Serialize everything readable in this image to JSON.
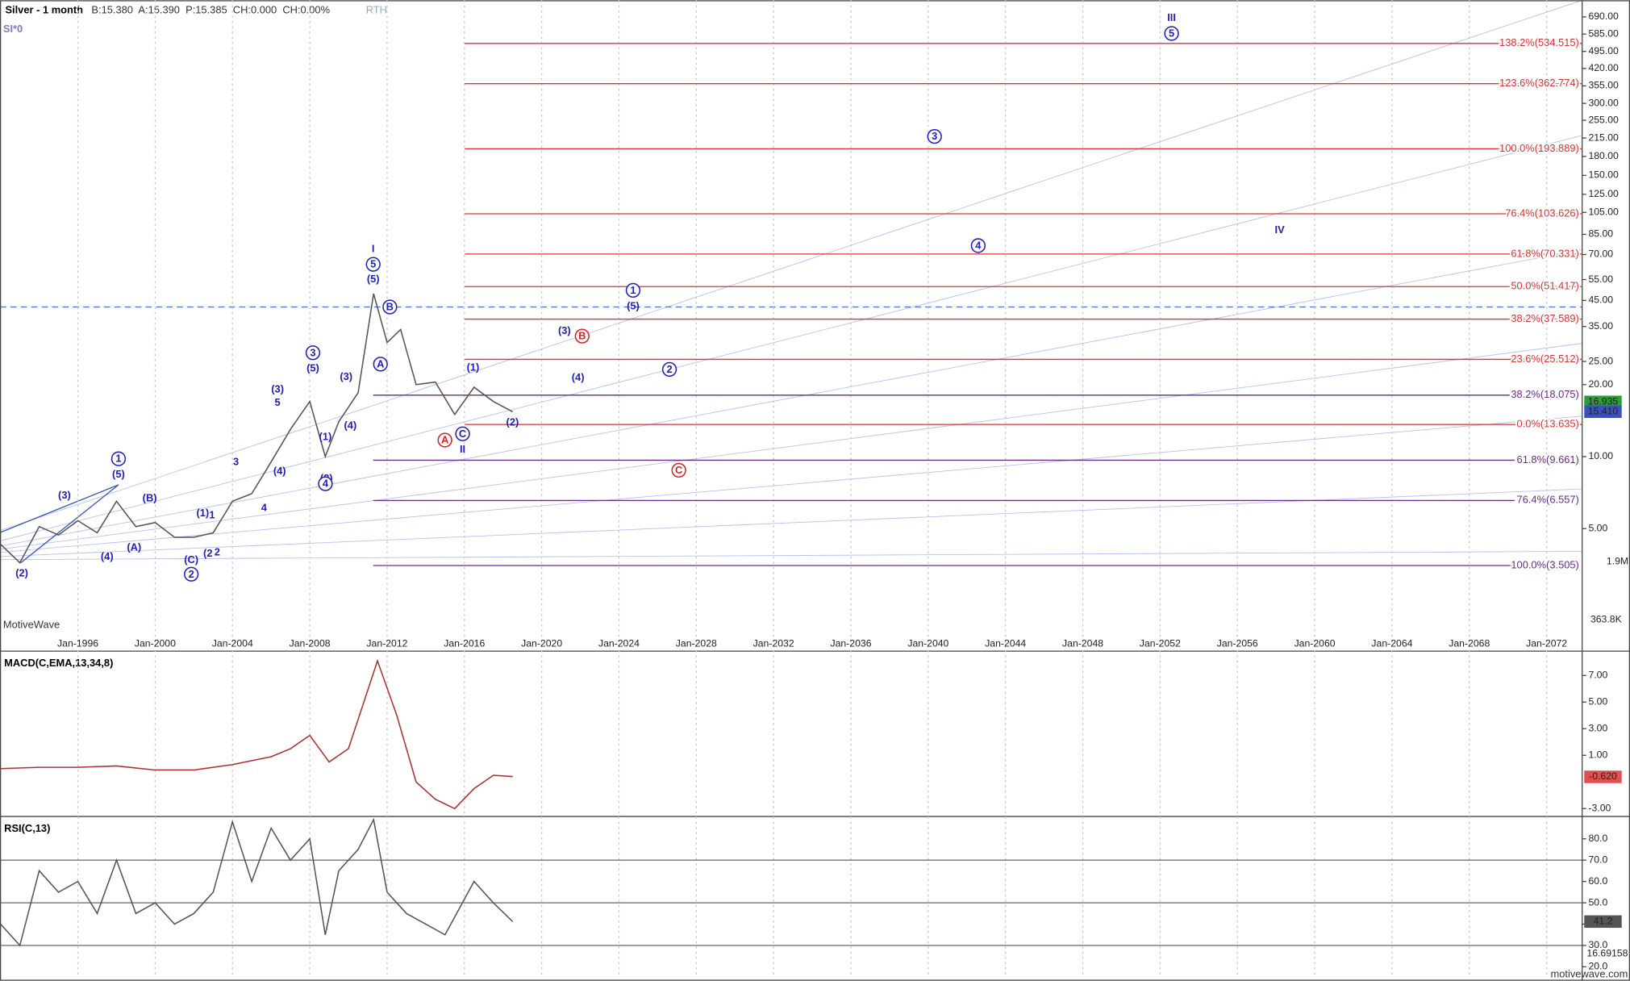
{
  "header": {
    "instrument": "Silver - 1 month",
    "quote": "B:15.380  A:15.390  P:15.385  CH:0.000  CH:0.00%",
    "session": "RTH",
    "symbol": "SI*0",
    "watermark": "MotiveWave",
    "footer": "motivewave.com",
    "volume_labels": [
      "1.9M",
      "363.8K"
    ]
  },
  "chart_data": [
    {
      "type": "line",
      "log_scale": true,
      "grid": true,
      "color": "#555555",
      "x": [
        1992.0,
        1993.0,
        1994.0,
        1995.0,
        1996.0,
        1997.0,
        1998.0,
        1999.0,
        2000.0,
        2001.0,
        2002.0,
        2003.0,
        2004.0,
        2005.0,
        2006.0,
        2007.0,
        2008.0,
        2008.8,
        2009.5,
        2010.5,
        2011.3,
        2012.0,
        2012.7,
        2013.5,
        2014.5,
        2015.5,
        2016.5,
        2017.5,
        2018.5
      ],
      "values": [
        4.3,
        3.6,
        5.1,
        4.7,
        5.4,
        4.8,
        6.5,
        5.1,
        5.3,
        4.6,
        4.6,
        4.8,
        6.5,
        7.0,
        9.5,
        13.0,
        17.0,
        10.0,
        14.0,
        18.5,
        48.0,
        30.0,
        34.0,
        20.0,
        20.5,
        15.0,
        19.5,
        17.0,
        15.4
      ],
      "xlim": [
        1991.97,
        2073.84
      ],
      "ylim": [
        1.84,
        794
      ],
      "xticks": [
        {
          "value": 1996,
          "label": "Jan-1996"
        },
        {
          "value": 2000,
          "label": "Jan-2000"
        },
        {
          "value": 2004,
          "label": "Jan-2004"
        },
        {
          "value": 2008,
          "label": "Jan-2008"
        },
        {
          "value": 2012,
          "label": "Jan-2012"
        },
        {
          "value": 2016,
          "label": "Jan-2016"
        },
        {
          "value": 2020,
          "label": "Jan-2020"
        },
        {
          "value": 2024,
          "label": "Jan-2024"
        },
        {
          "value": 2028,
          "label": "Jan-2028"
        },
        {
          "value": 2032,
          "label": "Jan-2032"
        },
        {
          "value": 2036,
          "label": "Jan-2036"
        },
        {
          "value": 2040,
          "label": "Jan-2040"
        },
        {
          "value": 2044,
          "label": "Jan-2044"
        },
        {
          "value": 2048,
          "label": "Jan-2048"
        },
        {
          "value": 2052,
          "label": "Jan-2052"
        },
        {
          "value": 2056,
          "label": "Jan-2056"
        },
        {
          "value": 2060,
          "label": "Jan-2060"
        },
        {
          "value": 2064,
          "label": "Jan-2064"
        },
        {
          "value": 2068,
          "label": "Jan-2068"
        },
        {
          "value": 2072,
          "label": "Jan-2072"
        }
      ],
      "yticks": [
        {
          "value": 690,
          "label": "690.00"
        },
        {
          "value": 585,
          "label": "585.00"
        },
        {
          "value": 495,
          "label": "495.00"
        },
        {
          "value": 420,
          "label": "420.00"
        },
        {
          "value": 355,
          "label": "355.00"
        },
        {
          "value": 300,
          "label": "300.00"
        },
        {
          "value": 255,
          "label": "255.00"
        },
        {
          "value": 215,
          "label": "215.00"
        },
        {
          "value": 180,
          "label": "180.00"
        },
        {
          "value": 150,
          "label": "150.00"
        },
        {
          "value": 125,
          "label": "125.00"
        },
        {
          "value": 105,
          "label": "105.00"
        },
        {
          "value": 85,
          "label": "85.00"
        },
        {
          "value": 70,
          "label": "70.00"
        },
        {
          "value": 55,
          "label": "55.00"
        },
        {
          "value": 45,
          "label": "45.00"
        },
        {
          "value": 35,
          "label": "35.00"
        },
        {
          "value": 25,
          "label": "25.00"
        },
        {
          "value": 20,
          "label": "20.00"
        },
        {
          "value": 10,
          "label": "10.00"
        },
        {
          "value": 5,
          "label": "5.00"
        }
      ],
      "markers": [
        {
          "value": 16.935,
          "label": "16.935",
          "color": "#2e9a3a"
        },
        {
          "value": 15.41,
          "label": "15.410",
          "color": "#3a50c0"
        }
      ],
      "levels": [
        {
          "value": 534.515,
          "label": "138.2%(534.515)",
          "color": "#e03030"
        },
        {
          "value": 362.774,
          "label": "123.6%(362.774)",
          "color": "#e03030"
        },
        {
          "value": 193.889,
          "label": "100.0%(193.889)",
          "color": "#e03030"
        },
        {
          "value": 103.626,
          "label": "76.4%(103.626)",
          "color": "#e03030"
        },
        {
          "value": 70.331,
          "label": "61.8%(70.331)",
          "color": "#e03030"
        },
        {
          "value": 51.417,
          "label": "50.0%(51.417)",
          "color": "#e03030"
        },
        {
          "value": 37.589,
          "label": "38.2%(37.589)",
          "color": "#e03030"
        },
        {
          "value": 25.512,
          "label": "23.6%(25.512)",
          "color": "#e03030"
        },
        {
          "value": 18.075,
          "label": "38.2%(18.075)",
          "color": "#6a2a8a"
        },
        {
          "value": 13.635,
          "label": "0.0%(13.635)",
          "color": "#e03030"
        },
        {
          "value": 9.661,
          "label": "61.8%(9.661)",
          "color": "#6a2a8a"
        },
        {
          "value": 6.557,
          "label": "76.4%(6.557)",
          "color": "#6a2a8a"
        },
        {
          "value": 3.505,
          "label": "100.0%(3.505)",
          "color": "#6a2a8a"
        }
      ],
      "wave_labels": [
        "III",
        "5",
        "3",
        "4",
        "IV",
        "I",
        "5",
        "(5)",
        "B",
        "1",
        "(5)",
        "(3)",
        "B",
        "A",
        "(1)",
        "2",
        "(4)",
        "3",
        "(5)",
        "(3)",
        "5",
        "(3)",
        "(4)",
        "(1)",
        "(2)",
        "C",
        "II",
        "A",
        "C",
        "3",
        "(4)",
        "(2)",
        "4",
        "4",
        "1",
        "(5)",
        "(3)",
        "(B)",
        "(1)",
        "1",
        "(A)",
        "(4)",
        "(2",
        "2",
        "(C)",
        "2",
        "(2)"
      ]
    },
    {
      "type": "line",
      "title": "MACD(C,EMA,13,34,8)",
      "color": "#b03030",
      "x": [
        1992,
        1994,
        1996,
        1998,
        2000,
        2002,
        2004,
        2006,
        2007,
        2008,
        2009,
        2010,
        2011.5,
        2012.5,
        2013.5,
        2014.5,
        2015.5,
        2016.5,
        2017.5,
        2018.5
      ],
      "values": [
        0,
        0.1,
        0.1,
        0.2,
        -0.1,
        -0.1,
        0.3,
        0.9,
        1.5,
        2.5,
        0.5,
        1.5,
        8.1,
        4,
        -1,
        -2.3,
        -3,
        -1.5,
        -0.5,
        -0.6
      ],
      "ylim": [
        -3.44,
        8.67
      ],
      "yticks": [
        {
          "value": 7,
          "label": "7.00"
        },
        {
          "value": 5,
          "label": "5.00"
        },
        {
          "value": 3,
          "label": "3.00"
        },
        {
          "value": 1,
          "label": "1.00"
        },
        {
          "value": -3,
          "label": "-3.00"
        }
      ],
      "markers": [
        {
          "value": -0.62,
          "label": "-0.620",
          "color": "#e05050"
        }
      ]
    },
    {
      "type": "line",
      "title": "RSI(C,13)",
      "color": "#555555",
      "x": [
        1992,
        1993,
        1994,
        1995,
        1996,
        1997,
        1998,
        1999,
        2000,
        2001,
        2002,
        2003,
        2004,
        2005,
        2006,
        2007,
        2008,
        2008.8,
        2009.5,
        2010.5,
        2011.3,
        2012,
        2013,
        2014,
        2015,
        2016.5,
        2017.5,
        2018.5
      ],
      "values": [
        40,
        30,
        65,
        55,
        60,
        45,
        70,
        45,
        50,
        40,
        45,
        55,
        88,
        60,
        85,
        70,
        80,
        35,
        65,
        75,
        89,
        55,
        45,
        40,
        35,
        60,
        50,
        41.2
      ],
      "ylim": [
        14.9,
        89.5
      ],
      "yticks": [
        {
          "value": 80,
          "label": "80.0"
        },
        {
          "value": 70,
          "label": "70.0"
        },
        {
          "value": 60,
          "label": "60.0"
        },
        {
          "value": 50,
          "label": "50.0"
        },
        {
          "value": 40,
          "label": "40.0"
        },
        {
          "value": 30,
          "label": "30.0"
        },
        {
          "value": 20,
          "label": "20.0"
        }
      ],
      "levels": [
        70,
        50,
        30
      ],
      "markers": [
        {
          "value": 41.2,
          "label": "41.2",
          "color": "#555555"
        }
      ],
      "readout": "16.69158"
    }
  ]
}
